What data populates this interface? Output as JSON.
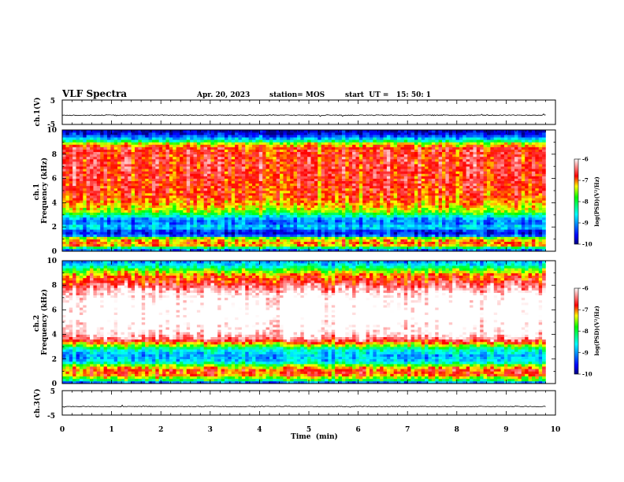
{
  "header": {
    "title": "VLF Spectra",
    "date": "Apr. 20, 2023",
    "station": "station= MOS",
    "start": "start  UT =   15: 50: 1"
  },
  "chart_data": [
    {
      "type": "line",
      "name": "waveform-ch1",
      "ylabel": "ch.1(V)",
      "ylim": [
        -5,
        5
      ],
      "yticks": [
        {
          "value": 5,
          "label": "5"
        },
        {
          "value": -5,
          "label": "-5"
        }
      ],
      "xlim": [
        0,
        10
      ],
      "baseline": -1.2,
      "noise_amplitude": 0.35,
      "data_end_min": 9.8
    },
    {
      "type": "heatmap",
      "name": "spectrogram-ch1",
      "ylabel": "ch.1\nFrequency (kHz)",
      "ylim": [
        0,
        10
      ],
      "xlim": [
        0,
        10
      ],
      "yticks": [
        {
          "value": 0,
          "label": "0"
        },
        {
          "value": 2,
          "label": "2"
        },
        {
          "value": 4,
          "label": "4"
        },
        {
          "value": 6,
          "label": "6"
        },
        {
          "value": 8,
          "label": "8"
        },
        {
          "value": 10,
          "label": "10"
        }
      ],
      "data_end_min": 9.8,
      "profile_kHz_vs_logPSD": [
        [
          0.0,
          -9.8
        ],
        [
          0.2,
          -8.6
        ],
        [
          0.5,
          -7.2
        ],
        [
          0.8,
          -7.0
        ],
        [
          1.1,
          -7.6
        ],
        [
          1.3,
          -9.2
        ],
        [
          1.6,
          -9.7
        ],
        [
          1.8,
          -9.1
        ],
        [
          2.0,
          -8.7
        ],
        [
          2.4,
          -9.2
        ],
        [
          2.8,
          -8.8
        ],
        [
          3.0,
          -8.2
        ],
        [
          3.3,
          -7.6
        ],
        [
          3.8,
          -7.2
        ],
        [
          4.5,
          -6.9
        ],
        [
          5.5,
          -6.8
        ],
        [
          7.0,
          -6.7
        ],
        [
          8.5,
          -6.8
        ],
        [
          8.9,
          -7.4
        ],
        [
          9.2,
          -8.6
        ],
        [
          9.5,
          -9.3
        ],
        [
          9.8,
          -9.8
        ],
        [
          10.0,
          -9.9
        ]
      ]
    },
    {
      "type": "heatmap",
      "name": "spectrogram-ch2",
      "ylabel": "ch.2\nFrequency (kHz)",
      "ylim": [
        0,
        10
      ],
      "xlim": [
        0,
        10
      ],
      "yticks": [
        {
          "value": 0,
          "label": "0"
        },
        {
          "value": 2,
          "label": "2"
        },
        {
          "value": 4,
          "label": "4"
        },
        {
          "value": 6,
          "label": "6"
        },
        {
          "value": 8,
          "label": "8"
        },
        {
          "value": 10,
          "label": "10"
        }
      ],
      "data_end_min": 9.8,
      "profile_kHz_vs_logPSD": [
        [
          0.0,
          -9.6
        ],
        [
          0.3,
          -8.0
        ],
        [
          0.7,
          -7.0
        ],
        [
          1.0,
          -6.8
        ],
        [
          1.4,
          -7.3
        ],
        [
          1.8,
          -8.7
        ],
        [
          2.3,
          -8.9
        ],
        [
          2.8,
          -8.4
        ],
        [
          3.2,
          -7.3
        ],
        [
          3.6,
          -6.4
        ],
        [
          4.2,
          -5.9
        ],
        [
          5.5,
          -5.6
        ],
        [
          7.0,
          -5.8
        ],
        [
          7.8,
          -6.3
        ],
        [
          8.3,
          -6.7
        ],
        [
          8.8,
          -7.0
        ],
        [
          9.2,
          -7.6
        ],
        [
          9.6,
          -8.5
        ],
        [
          10.0,
          -9.0
        ]
      ]
    },
    {
      "type": "line",
      "name": "waveform-ch3",
      "ylabel": "ch.3(V)",
      "ylim": [
        -5,
        5
      ],
      "yticks": [
        {
          "value": 5,
          "label": "5"
        },
        {
          "value": -5,
          "label": "-5"
        }
      ],
      "xlim": [
        0,
        10
      ],
      "xlabel": "Time  (min)",
      "xticks": [
        {
          "value": 0,
          "label": "0"
        },
        {
          "value": 1,
          "label": "1"
        },
        {
          "value": 2,
          "label": "2"
        },
        {
          "value": 3,
          "label": "3"
        },
        {
          "value": 4,
          "label": "4"
        },
        {
          "value": 5,
          "label": "5"
        },
        {
          "value": 6,
          "label": "6"
        },
        {
          "value": 7,
          "label": "7"
        },
        {
          "value": 8,
          "label": "8"
        },
        {
          "value": 9,
          "label": "9"
        },
        {
          "value": 10,
          "label": "10"
        }
      ],
      "baseline": -1.5,
      "noise_amplitude": 0.3,
      "data_end_min": 9.8
    }
  ],
  "colorbar": {
    "label": "log(PSD)(V²/Hz)",
    "range": [
      -10,
      -6
    ],
    "ticks": [
      {
        "value": -6,
        "label": "-6"
      },
      {
        "value": -7,
        "label": "-7"
      },
      {
        "value": -8,
        "label": "-8"
      },
      {
        "value": -9,
        "label": "-9"
      },
      {
        "value": -10,
        "label": "-10"
      }
    ],
    "colors": [
      "#000080",
      "#0000ff",
      "#00ffff",
      "#00ff00",
      "#ffff00",
      "#ff0000",
      "#ffffff"
    ]
  }
}
